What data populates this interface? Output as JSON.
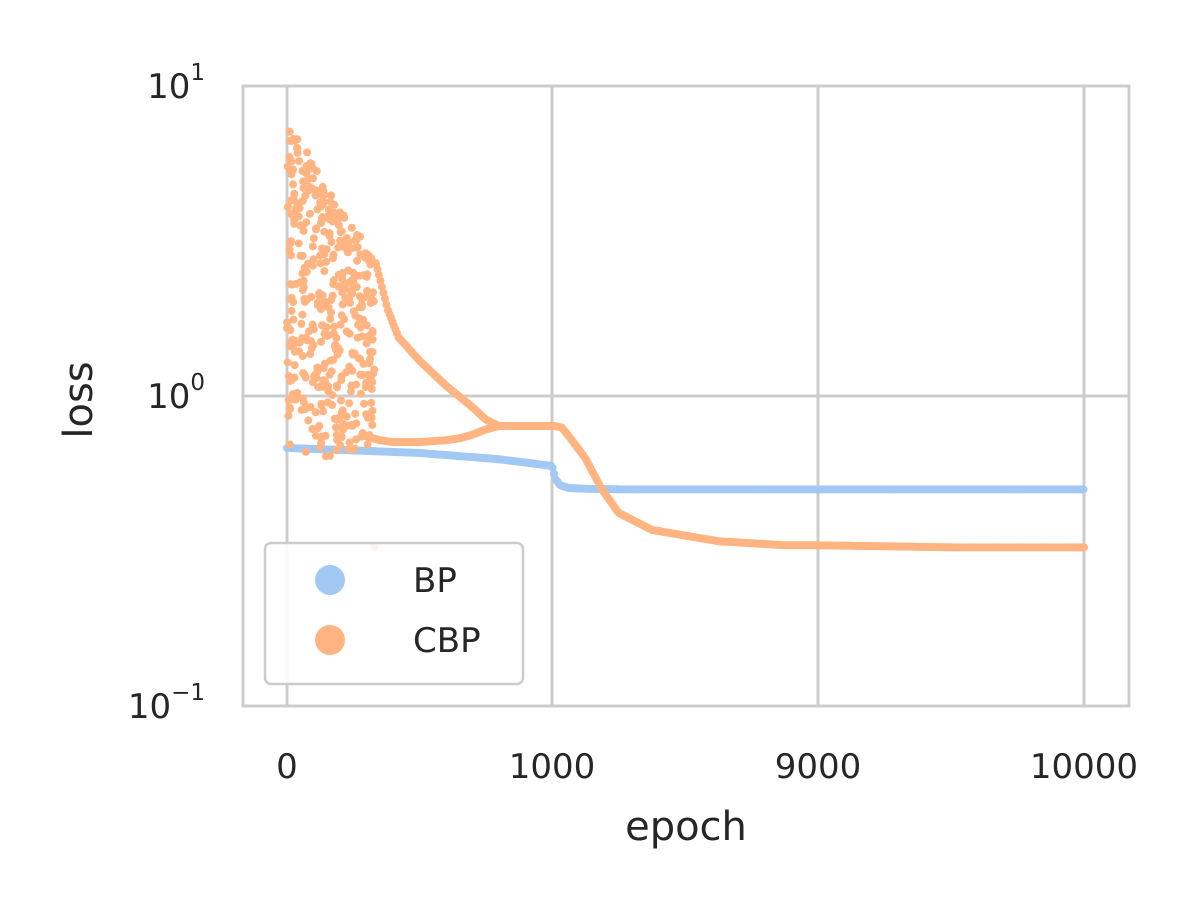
{
  "chart_data": {
    "type": "scatter",
    "title": "",
    "xlabel": "epoch",
    "ylabel": "loss",
    "y_scale": "log",
    "ylim": [
      0.1,
      10
    ],
    "x_ticks": [
      "0",
      "1000",
      "9000",
      "10000"
    ],
    "x_scale_note": "x axis ticks are not linearly spaced (0, 1000, 9000, 10000 at equal gaps)",
    "y_ticks": [
      {
        "base": "10",
        "exp": "−1",
        "value": 0.1
      },
      {
        "base": "10",
        "exp": "0",
        "value": 1
      },
      {
        "base": "10",
        "exp": "1",
        "value": 10
      }
    ],
    "grid": true,
    "legend_position": "lower-left",
    "series": [
      {
        "name": "BP",
        "color": "#a1c9f4",
        "points": [
          [
            0,
            0.68
          ],
          [
            100,
            0.675
          ],
          [
            200,
            0.67
          ],
          [
            300,
            0.665
          ],
          [
            400,
            0.66
          ],
          [
            500,
            0.655
          ],
          [
            600,
            0.645
          ],
          [
            700,
            0.635
          ],
          [
            800,
            0.625
          ],
          [
            900,
            0.61
          ],
          [
            1000,
            0.595
          ],
          [
            1100,
            0.54
          ],
          [
            1250,
            0.515
          ],
          [
            1500,
            0.505
          ],
          [
            2000,
            0.502
          ],
          [
            3000,
            0.5
          ],
          [
            4000,
            0.5
          ],
          [
            5000,
            0.5
          ],
          [
            6000,
            0.5
          ],
          [
            7000,
            0.5
          ],
          [
            8000,
            0.5
          ],
          [
            9000,
            0.5
          ],
          [
            9500,
            0.5
          ],
          [
            10000,
            0.5
          ]
        ]
      },
      {
        "name": "CBP",
        "color": "#ffb482",
        "points": [
          [
            330,
            2.8
          ],
          [
            350,
            2.4
          ],
          [
            380,
            1.9
          ],
          [
            420,
            1.55
          ],
          [
            500,
            1.3
          ],
          [
            600,
            1.08
          ],
          [
            700,
            0.92
          ],
          [
            750,
            0.84
          ],
          [
            800,
            0.8
          ],
          [
            900,
            0.8
          ],
          [
            1000,
            0.8
          ],
          [
            1100,
            0.8
          ],
          [
            1300,
            0.79
          ],
          [
            1600,
            0.72
          ],
          [
            2000,
            0.63
          ],
          [
            2500,
            0.5
          ],
          [
            3000,
            0.42
          ],
          [
            4000,
            0.37
          ],
          [
            6000,
            0.34
          ],
          [
            8000,
            0.33
          ],
          [
            9000,
            0.33
          ],
          [
            9500,
            0.325
          ],
          [
            10000,
            0.325
          ]
        ],
        "lower_branch": [
          [
            300,
            0.74
          ],
          [
            350,
            0.72
          ],
          [
            400,
            0.71
          ],
          [
            500,
            0.71
          ],
          [
            600,
            0.72
          ],
          [
            650,
            0.73
          ],
          [
            700,
            0.75
          ],
          [
            750,
            0.78
          ],
          [
            800,
            0.8
          ]
        ],
        "noisy_region": {
          "epoch_range": [
            0,
            330
          ],
          "loss_range": [
            0.63,
            7.8
          ]
        }
      }
    ]
  }
}
